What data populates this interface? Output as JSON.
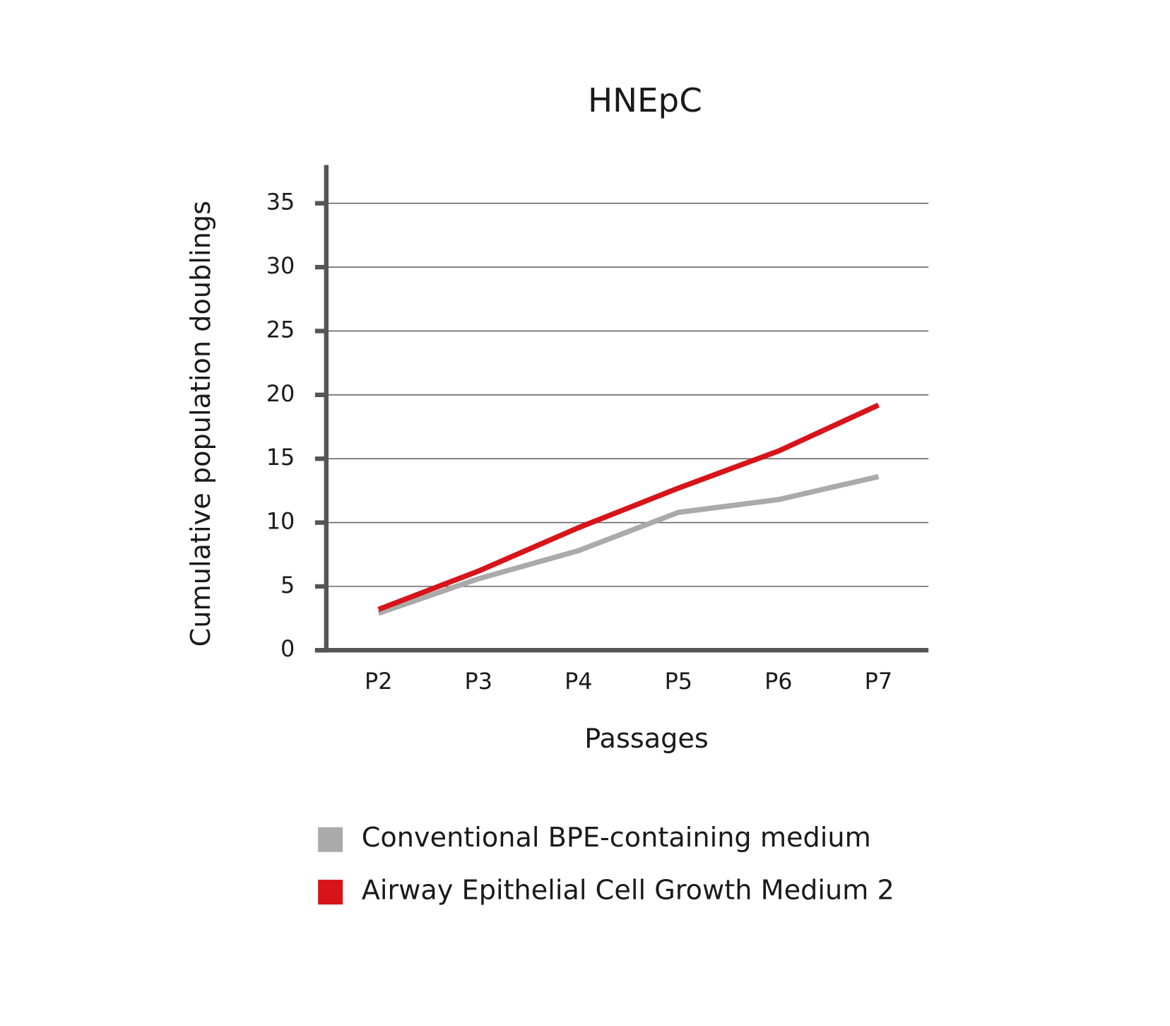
{
  "chart_data": {
    "type": "line",
    "title": "HNEpC",
    "x_label": "Passages",
    "y_label": "Cumulative population doublings",
    "categories": [
      "P2",
      "P3",
      "P4",
      "P5",
      "P6",
      "P7"
    ],
    "series": [
      {
        "name": "Conventional BPE-containing medium",
        "color": "#aaaaaa",
        "values": [
          2.9,
          5.6,
          7.8,
          10.8,
          11.8,
          13.6
        ]
      },
      {
        "name": "Airway Epithelial Cell Growth Medium 2",
        "color": "#d7141a",
        "values": [
          3.2,
          6.2,
          9.6,
          12.7,
          15.6,
          19.2
        ]
      }
    ],
    "ylim": [
      0,
      38
    ],
    "yticks": [
      0,
      5,
      10,
      15,
      20,
      25,
      30,
      35
    ],
    "grid": true
  }
}
